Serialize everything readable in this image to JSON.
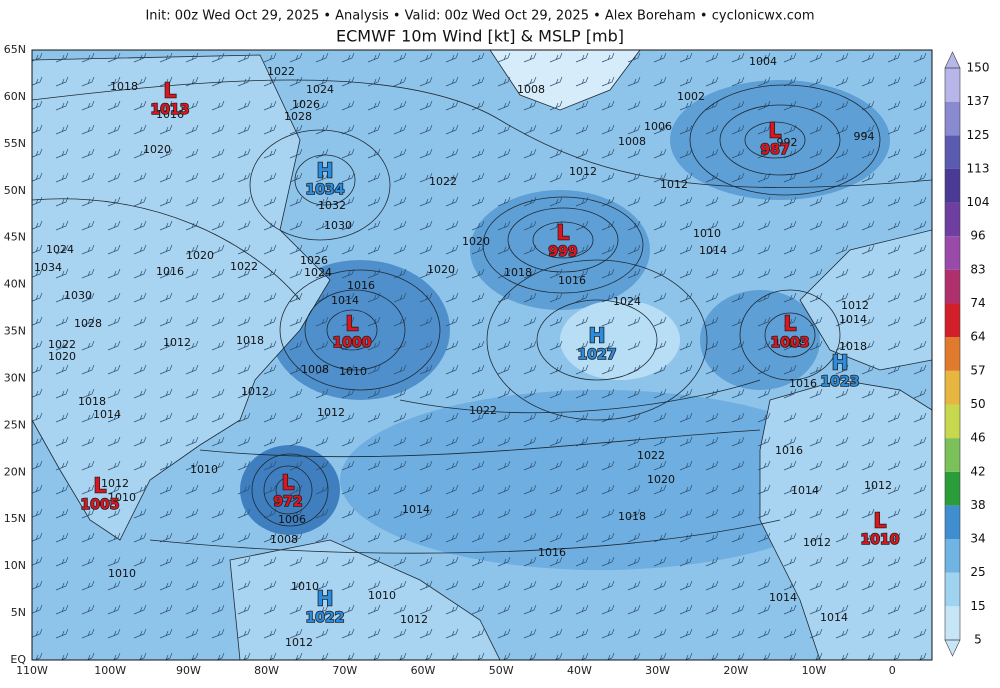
{
  "header": {
    "subtitle": "Init: 00z Wed Oct 29, 2025 • Analysis • Valid: 00z Wed Oct 29, 2025 • Alex Boreham • cyclonicwx.com",
    "title": "ECMWF 10m Wind [kt] & MSLP [mb]"
  },
  "latitude_labels": [
    "65N",
    "60N",
    "55N",
    "50N",
    "45N",
    "40N",
    "35N",
    "30N",
    "25N",
    "20N",
    "15N",
    "10N",
    "5N",
    "EQ"
  ],
  "longitude_labels": [
    "110W",
    "100W",
    "90W",
    "80W",
    "70W",
    "60W",
    "50W",
    "40W",
    "30W",
    "20W",
    "10W",
    "0"
  ],
  "colorbar": {
    "ticks": [
      5,
      15,
      25,
      34,
      38,
      42,
      46,
      50,
      57,
      64,
      74,
      83,
      96,
      104,
      113,
      125,
      137,
      150
    ],
    "colors": [
      "#c6e6f7",
      "#9fd3f0",
      "#6fb4e3",
      "#3f8fd0",
      "#2a9d3a",
      "#7cc05a",
      "#c8d84e",
      "#e6b640",
      "#e07a2c",
      "#d2202a",
      "#b0306e",
      "#9a4aa8",
      "#6e3fa0",
      "#4a3a96",
      "#5a5ab0",
      "#8a8ad0",
      "#b6b6e8"
    ]
  },
  "pressure_centers": [
    {
      "type": "L",
      "pressure": 1013
    },
    {
      "type": "H",
      "pressure": 1034
    },
    {
      "type": "L",
      "pressure": 999
    },
    {
      "type": "L",
      "pressure": 987
    },
    {
      "type": "L",
      "pressure": 1000
    },
    {
      "type": "H",
      "pressure": 1027
    },
    {
      "type": "L",
      "pressure": 1003
    },
    {
      "type": "H",
      "pressure": 1023
    },
    {
      "type": "L",
      "pressure": 972
    },
    {
      "type": "L",
      "pressure": 1005
    },
    {
      "type": "H",
      "pressure": 1022
    },
    {
      "type": "L",
      "pressure": 1010
    }
  ],
  "isobar_labels": [
    1018,
    1022,
    1024,
    1026,
    1028,
    1020,
    1032,
    1030,
    1022,
    1016,
    1024,
    1034,
    1030,
    1028,
    1022,
    1020,
    1016,
    1020,
    1022,
    1026,
    1024,
    1016,
    1014,
    1012,
    1018,
    1008,
    1010,
    1020,
    1020,
    1018,
    1016,
    1024,
    1012,
    1008,
    1006,
    1002,
    1004,
    1008,
    1012,
    1010,
    1014,
    992,
    994,
    1012,
    1014,
    1018,
    1008,
    1016,
    1012,
    1012,
    1022,
    1018,
    1014,
    1010,
    1012,
    1010,
    1006,
    1008,
    1014,
    1018,
    1022,
    1020,
    1016,
    1014,
    1012,
    1012,
    1016,
    1010,
    1010,
    1010,
    1012,
    1014,
    1014,
    1012
  ]
}
